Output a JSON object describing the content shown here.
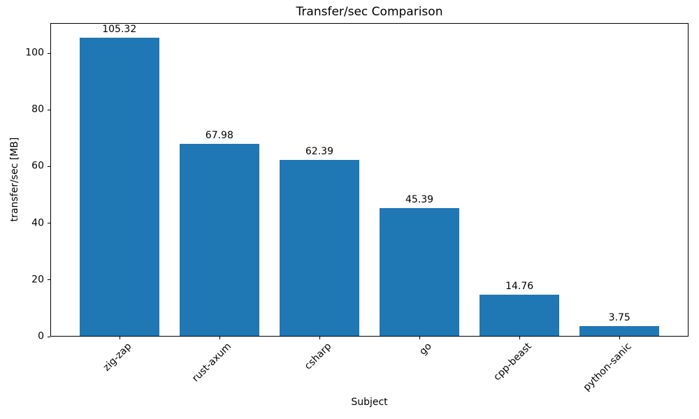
{
  "chart_data": {
    "type": "bar",
    "title": "Transfer/sec Comparison",
    "xlabel": "Subject",
    "ylabel": "transfer/sec [MB]",
    "categories": [
      "zig-zap",
      "rust-axum",
      "csharp",
      "go",
      "cpp-beast",
      "python-sanic"
    ],
    "values": [
      105.32,
      67.98,
      62.39,
      45.39,
      14.76,
      3.75
    ],
    "value_labels": [
      "105.32",
      "67.98",
      "62.39",
      "45.39",
      "14.76",
      "3.75"
    ],
    "yticks": [
      0,
      20,
      40,
      60,
      80,
      100
    ],
    "ylim": [
      0,
      110.6
    ],
    "bar_color": "#1f77b4",
    "bar_width_fraction": 0.8,
    "x_tick_rotation_deg": 45,
    "grid": false,
    "legend": null
  }
}
